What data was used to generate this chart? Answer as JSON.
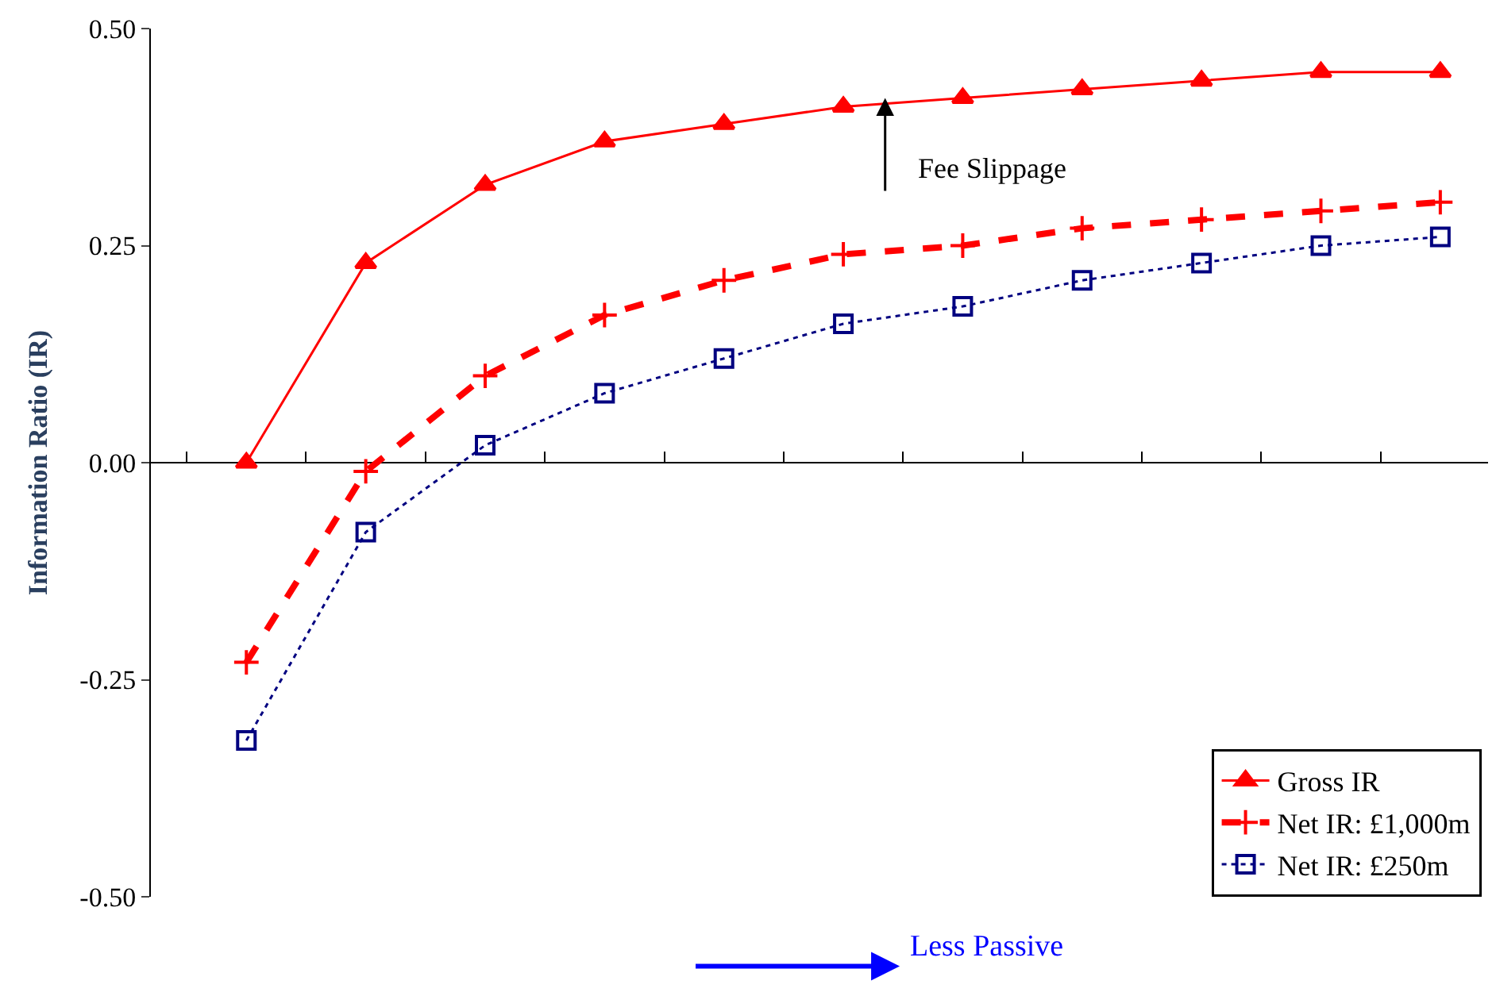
{
  "chart_data": {
    "type": "line",
    "ylabel": "Information Ratio (IR)",
    "categories": [
      null,
      null,
      null,
      null,
      null,
      null,
      null,
      null,
      null,
      null,
      null
    ],
    "series": [
      {
        "name": "Gross IR",
        "color": "#ff0000",
        "marker": "triangle",
        "line_style": "solid",
        "values": [
          0.0,
          0.23,
          0.32,
          0.37,
          0.39,
          0.41,
          0.42,
          0.43,
          0.44,
          0.45,
          0.45
        ]
      },
      {
        "name": "Net IR: £1,000m",
        "color": "#ff0000",
        "marker": "cross",
        "line_style": "dashed",
        "values": [
          -0.23,
          -0.01,
          0.1,
          0.17,
          0.21,
          0.24,
          0.25,
          0.27,
          0.28,
          0.29,
          0.3
        ]
      },
      {
        "name": "Net IR: £250m",
        "color": "#000080",
        "marker": "square",
        "line_style": "dotted",
        "values": [
          -0.32,
          -0.08,
          0.02,
          0.08,
          0.12,
          0.16,
          0.18,
          0.21,
          0.23,
          0.25,
          0.26
        ]
      }
    ],
    "ylim": [
      -0.5,
      0.5
    ],
    "yticks": [
      {
        "value": -0.5,
        "label": "-0.50"
      },
      {
        "value": -0.25,
        "label": "-0.25"
      },
      {
        "value": 0,
        "label": "0.00"
      },
      {
        "value": 0.25,
        "label": "0.25"
      },
      {
        "value": 0.5,
        "label": "0.50"
      }
    ],
    "annotations": [
      "Fee Slippage",
      "Less Passive"
    ],
    "ref_lines": [
      {
        "axis": "y",
        "value": 0,
        "color": "#000000",
        "line_style": "solid"
      }
    ],
    "legend": "bottom right",
    "grid": false,
    "tick_labels": "y"
  }
}
